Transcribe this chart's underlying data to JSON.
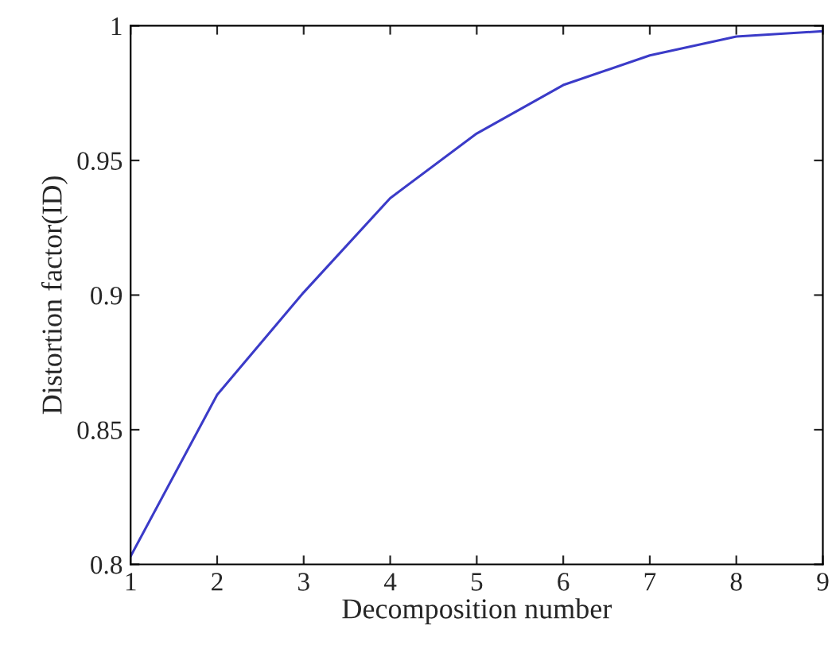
{
  "chart_data": {
    "type": "line",
    "xlabel": "Decomposition number",
    "ylabel": "Distortion factor(ID)",
    "x": [
      1,
      2,
      3,
      4,
      5,
      6,
      7,
      8,
      9
    ],
    "series": [
      {
        "color": "#3b3bc8",
        "values": [
          0.803,
          0.863,
          0.901,
          0.936,
          0.96,
          0.978,
          0.989,
          0.996,
          0.998
        ]
      }
    ],
    "xlim": [
      1,
      9
    ],
    "ylim": [
      0.8,
      1
    ],
    "xticks": [
      1,
      2,
      3,
      4,
      5,
      6,
      7,
      8,
      9
    ],
    "yticks": [
      0.8,
      0.85,
      0.9,
      0.95,
      1
    ],
    "grid": false,
    "legend": false
  }
}
